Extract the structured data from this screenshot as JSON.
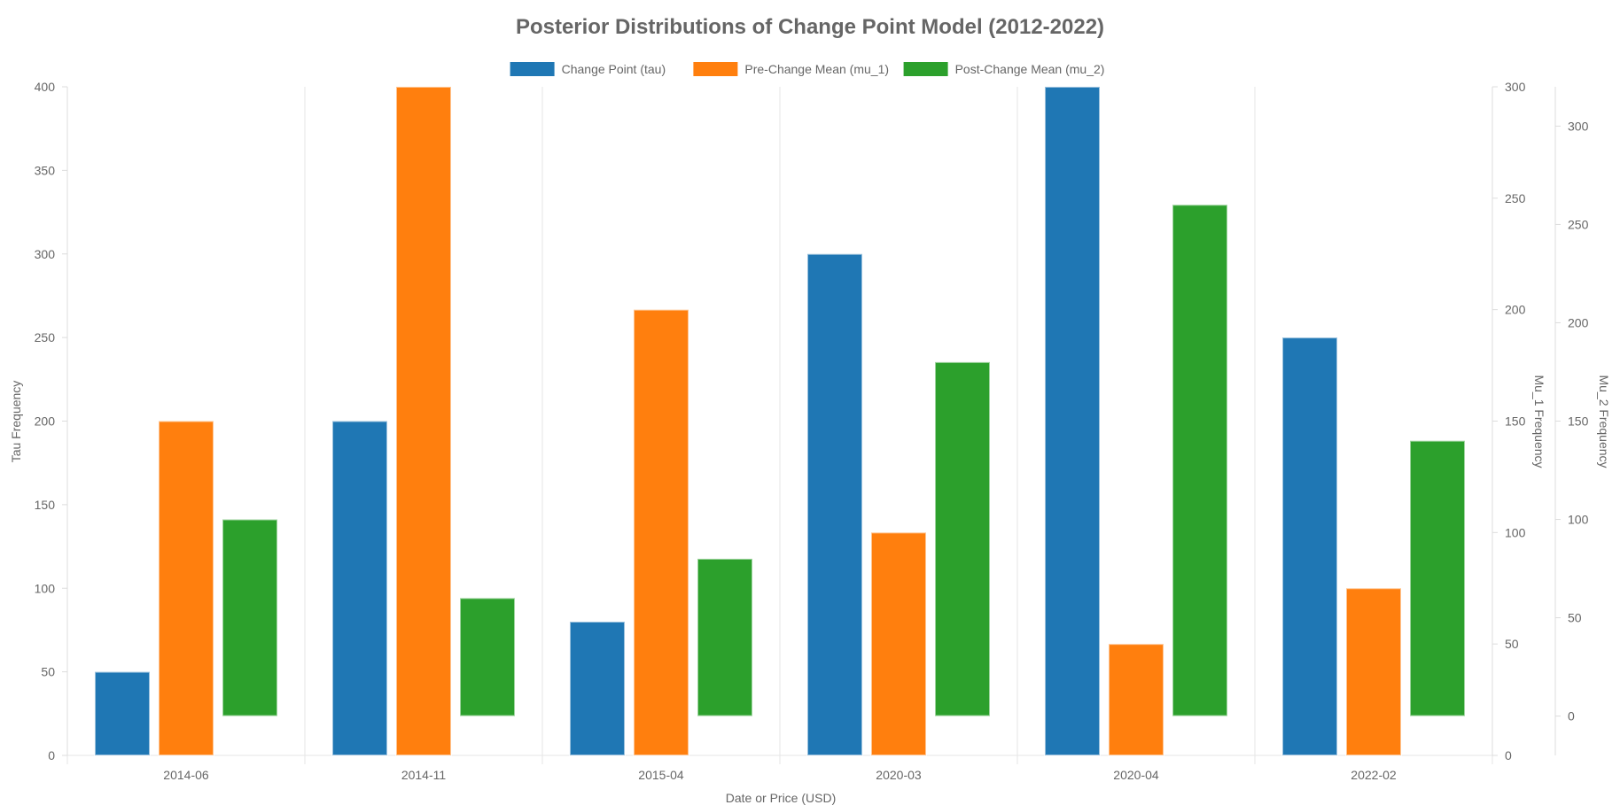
{
  "chart_data": {
    "type": "bar",
    "title": "Posterior Distributions of Change Point Model (2012-2022)",
    "xlabel": "Date or Price (USD)",
    "categories": [
      "2014-06",
      "2014-11",
      "2015-04",
      "2020-03",
      "2020-04",
      "2022-02"
    ],
    "series": [
      {
        "name": "Change Point (tau)",
        "axis": "y_left",
        "color": "#1f77b4",
        "values": [
          50,
          200,
          80,
          300,
          400,
          250
        ]
      },
      {
        "name": "Pre-Change Mean (mu_1)",
        "axis": "y_right1",
        "color": "#ff7f0e",
        "values": [
          150,
          300,
          200,
          100,
          50,
          75
        ]
      },
      {
        "name": "Post-Change Mean (mu_2)",
        "axis": "y_right2",
        "color": "#2ca02c",
        "values": [
          100,
          60,
          80,
          180,
          260,
          140
        ]
      }
    ],
    "axes": {
      "y_left": {
        "label": "Tau Frequency",
        "ylim": [
          0,
          400
        ],
        "ticks": [
          0,
          50,
          100,
          150,
          200,
          250,
          300,
          350,
          400
        ]
      },
      "y_right1": {
        "label": "Mu_1 Frequency",
        "ylim": [
          0,
          300
        ],
        "ticks": [
          0,
          50,
          100,
          150,
          200,
          250,
          300
        ]
      },
      "y_right2": {
        "label": "Mu_2 Frequency",
        "ylim": [
          -20,
          320
        ],
        "ticks": [
          0,
          50,
          100,
          150,
          200,
          250,
          300
        ]
      }
    },
    "legend_position": "top-center",
    "grid": {
      "x": true,
      "y": false
    }
  }
}
